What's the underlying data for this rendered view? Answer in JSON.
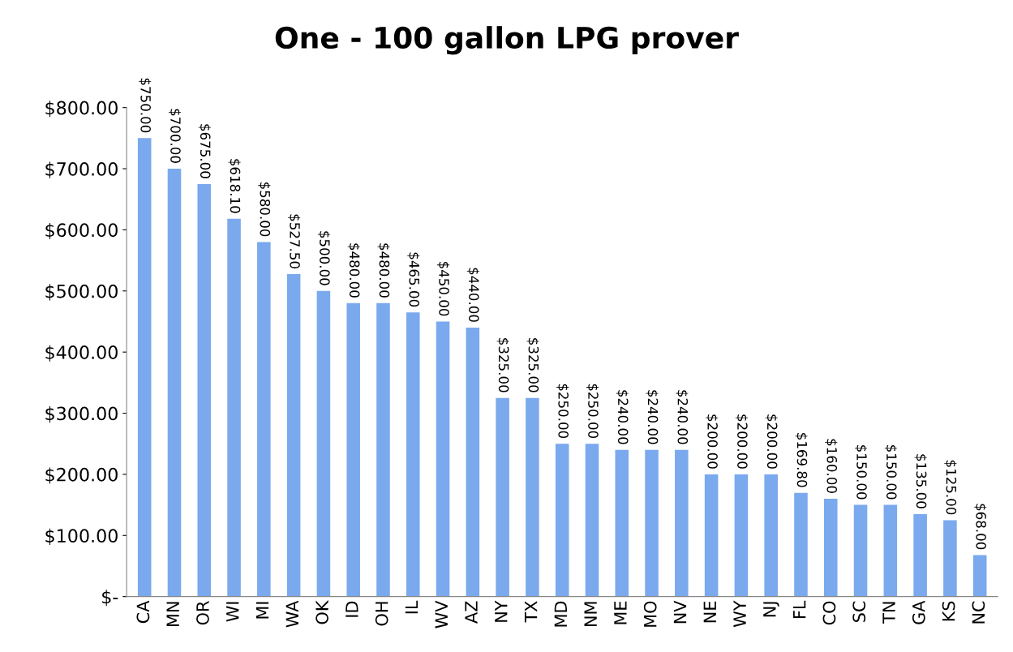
{
  "chart_data": {
    "type": "bar",
    "title": "One - 100 gallon LPG prover",
    "categories": [
      "CA",
      "MN",
      "OR",
      "WI",
      "MI",
      "WA",
      "OK",
      "ID",
      "OH",
      "IL",
      "WV",
      "AZ",
      "NY",
      "TX",
      "MD",
      "NM",
      "ME",
      "MO",
      "NV",
      "NE",
      "WY",
      "NJ",
      "FL",
      "CO",
      "SC",
      "TN",
      "GA",
      "KS",
      "NC"
    ],
    "values": [
      750,
      700,
      675,
      618.1,
      580,
      527.5,
      500,
      480,
      480,
      465,
      450,
      440,
      325,
      325,
      250,
      250,
      240,
      240,
      240,
      200,
      200,
      200,
      169.8,
      160,
      150,
      150,
      135,
      125,
      68
    ],
    "value_labels": [
      "$750.00",
      "$700.00",
      "$675.00",
      "$618.10",
      "$580.00",
      "$527.50",
      "$500.00",
      "$480.00",
      "$480.00",
      "$465.00",
      "$450.00",
      "$440.00",
      "$325.00",
      "$325.00",
      "$250.00",
      "$250.00",
      "$240.00",
      "$240.00",
      "$240.00",
      "$200.00",
      "$200.00",
      "$200.00",
      "$169.80",
      "$160.00",
      "$150.00",
      "$150.00",
      "$135.00",
      "$125.00",
      "$68.00"
    ],
    "color": "#7aa9ee",
    "ylim": [
      0,
      800
    ],
    "yticks": [
      {
        "value": 0,
        "label": "$-"
      },
      {
        "value": 100,
        "label": "$100.00"
      },
      {
        "value": 200,
        "label": "$200.00"
      },
      {
        "value": 300,
        "label": "$300.00"
      },
      {
        "value": 400,
        "label": "$400.00"
      },
      {
        "value": 500,
        "label": "$500.00"
      },
      {
        "value": 600,
        "label": "$600.00"
      },
      {
        "value": 700,
        "label": "$700.00"
      },
      {
        "value": 800,
        "label": "$800.00"
      }
    ],
    "grid": false,
    "legend": false
  }
}
